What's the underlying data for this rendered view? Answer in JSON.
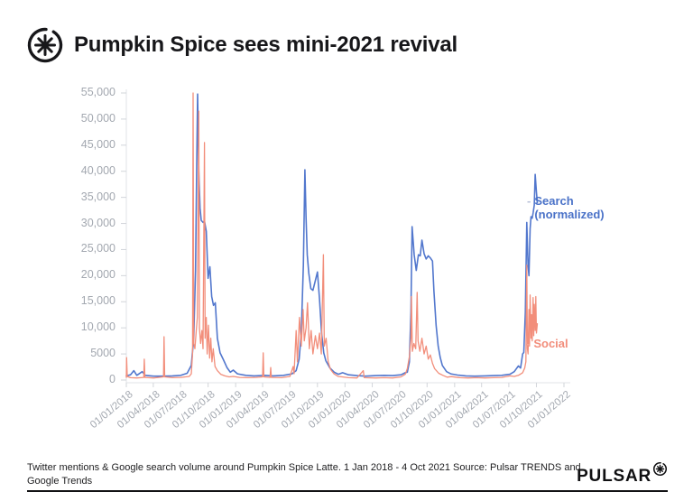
{
  "header": {
    "title": "Pumpkin Spice sees mini-2021 revival",
    "logo_icon": "pulsar-asterisk-icon"
  },
  "legend": {
    "dash": "-",
    "search_line1": "Search",
    "search_line2": "(normalized)",
    "social": "Social"
  },
  "footer": {
    "caption": "Twitter mentions & Google search volume around Pumpkin Spice Latte. 1 Jan 2018 - 4 Oct 2021 Source: Pulsar TRENDS and Google Trends",
    "brand": "PULSAR"
  },
  "colors": {
    "search": "#5277cd",
    "social": "#f28e7b",
    "axis_text": "#a3a8b0",
    "axis_line": "#e2e3e7",
    "tick_mark": "#d2d5da",
    "title_text": "#17171a"
  },
  "chart_data": {
    "type": "line",
    "title": "Pumpkin Spice sees mini-2021 revival",
    "xlabel": "",
    "ylabel": "",
    "grid": false,
    "legend_position": "right-of-line-ends",
    "x_axis": {
      "domain": [
        "2018-01-01",
        "2022-01-01"
      ],
      "tick_dates": [
        "2018-01-01",
        "2018-04-01",
        "2018-07-01",
        "2018-10-01",
        "2019-01-01",
        "2019-04-01",
        "2019-07-01",
        "2019-10-01",
        "2020-01-01",
        "2020-04-01",
        "2020-07-01",
        "2020-10-01",
        "2021-01-01",
        "2021-04-01",
        "2021-07-01",
        "2021-10-01",
        "2022-01-01"
      ],
      "tick_labels": [
        "01/01/2018",
        "01/04/2018",
        "01/07/2018",
        "01/10/2018",
        "01/01/2019",
        "01/04/2019",
        "01/07/2019",
        "01/10/2019",
        "01/01/2020",
        "01/04/2020",
        "01/07/2020",
        "01/10/2020",
        "01/01/2021",
        "01/04/2021",
        "01/07/2021",
        "01/10/2021",
        "01/01/2022"
      ]
    },
    "y_axis": {
      "min": 0,
      "max": 55000,
      "values": [
        0,
        5000,
        10000,
        15000,
        20000,
        25000,
        30000,
        35000,
        40000,
        45000,
        50000,
        55000
      ],
      "labels": [
        "0",
        "5000",
        "10,000",
        "15,000",
        "20,000",
        "25,000",
        "30,000",
        "35,000",
        "40,000",
        "45,000",
        "50,000",
        "55,000"
      ]
    },
    "series": [
      {
        "key": "search",
        "name": "Search (normalized)",
        "color": "#5277cd",
        "width": 1.6,
        "points": [
          [
            "2018-01-01",
            800
          ],
          [
            "2018-01-15",
            1000
          ],
          [
            "2018-01-26",
            1800
          ],
          [
            "2018-02-05",
            900
          ],
          [
            "2018-02-23",
            1600
          ],
          [
            "2018-03-05",
            900
          ],
          [
            "2018-04-02",
            750
          ],
          [
            "2018-05-07",
            750
          ],
          [
            "2018-06-04",
            800
          ],
          [
            "2018-07-02",
            900
          ],
          [
            "2018-07-23",
            1300
          ],
          [
            "2018-08-06",
            2800
          ],
          [
            "2018-08-14",
            8000
          ],
          [
            "2018-08-20",
            21000
          ],
          [
            "2018-08-24",
            41000
          ],
          [
            "2018-08-27",
            54800
          ],
          [
            "2018-08-31",
            40000
          ],
          [
            "2018-09-04",
            33000
          ],
          [
            "2018-09-08",
            30600
          ],
          [
            "2018-09-14",
            30200
          ],
          [
            "2018-09-19",
            30500
          ],
          [
            "2018-09-25",
            28500
          ],
          [
            "2018-10-01",
            19500
          ],
          [
            "2018-10-07",
            21700
          ],
          [
            "2018-10-13",
            16000
          ],
          [
            "2018-10-19",
            14300
          ],
          [
            "2018-10-25",
            14800
          ],
          [
            "2018-11-01",
            8000
          ],
          [
            "2018-11-10",
            5200
          ],
          [
            "2018-11-21",
            3900
          ],
          [
            "2018-12-03",
            2400
          ],
          [
            "2018-12-14",
            1500
          ],
          [
            "2018-12-24",
            1900
          ],
          [
            "2019-01-07",
            1200
          ],
          [
            "2019-02-04",
            900
          ],
          [
            "2019-03-04",
            800
          ],
          [
            "2019-04-08",
            900
          ],
          [
            "2019-05-06",
            800
          ],
          [
            "2019-06-10",
            900
          ],
          [
            "2019-07-08",
            1200
          ],
          [
            "2019-07-22",
            1800
          ],
          [
            "2019-08-01",
            4000
          ],
          [
            "2019-08-08",
            9000
          ],
          [
            "2019-08-15",
            22000
          ],
          [
            "2019-08-20",
            40300
          ],
          [
            "2019-08-24",
            31000
          ],
          [
            "2019-08-28",
            24000
          ],
          [
            "2019-09-02",
            20500
          ],
          [
            "2019-09-09",
            17500
          ],
          [
            "2019-09-16",
            17200
          ],
          [
            "2019-09-23",
            18800
          ],
          [
            "2019-10-01",
            20700
          ],
          [
            "2019-10-08",
            15500
          ],
          [
            "2019-10-15",
            9000
          ],
          [
            "2019-10-22",
            5200
          ],
          [
            "2019-10-29",
            3700
          ],
          [
            "2019-11-12",
            2300
          ],
          [
            "2019-11-26",
            1500
          ],
          [
            "2019-12-10",
            1100
          ],
          [
            "2019-12-24",
            1400
          ],
          [
            "2020-01-13",
            1000
          ],
          [
            "2020-02-10",
            850
          ],
          [
            "2020-03-09",
            750
          ],
          [
            "2020-04-13",
            850
          ],
          [
            "2020-05-11",
            900
          ],
          [
            "2020-06-08",
            850
          ],
          [
            "2020-07-06",
            1000
          ],
          [
            "2020-07-20",
            1400
          ],
          [
            "2020-07-27",
            1500
          ],
          [
            "2020-08-03",
            3500
          ],
          [
            "2020-08-08",
            13000
          ],
          [
            "2020-08-12",
            29400
          ],
          [
            "2020-08-19",
            24000
          ],
          [
            "2020-08-26",
            21000
          ],
          [
            "2020-09-02",
            24000
          ],
          [
            "2020-09-08",
            23800
          ],
          [
            "2020-09-14",
            26800
          ],
          [
            "2020-09-21",
            24200
          ],
          [
            "2020-09-28",
            23200
          ],
          [
            "2020-10-05",
            23800
          ],
          [
            "2020-10-12",
            23400
          ],
          [
            "2020-10-19",
            22800
          ],
          [
            "2020-10-24",
            17000
          ],
          [
            "2020-10-31",
            10500
          ],
          [
            "2020-11-07",
            6500
          ],
          [
            "2020-11-14",
            4300
          ],
          [
            "2020-11-21",
            2800
          ],
          [
            "2020-12-05",
            1600
          ],
          [
            "2020-12-19",
            1200
          ],
          [
            "2021-01-11",
            950
          ],
          [
            "2021-02-08",
            800
          ],
          [
            "2021-03-08",
            750
          ],
          [
            "2021-04-12",
            800
          ],
          [
            "2021-05-10",
            850
          ],
          [
            "2021-06-07",
            900
          ],
          [
            "2021-07-05",
            1100
          ],
          [
            "2021-07-19",
            1600
          ],
          [
            "2021-08-02",
            2700
          ],
          [
            "2021-08-09",
            2300
          ],
          [
            "2021-08-16",
            5000
          ],
          [
            "2021-08-20",
            5300
          ],
          [
            "2021-08-25",
            13000
          ],
          [
            "2021-08-30",
            30200
          ],
          [
            "2021-09-03",
            22000
          ],
          [
            "2021-09-06",
            20000
          ],
          [
            "2021-09-10",
            29000
          ],
          [
            "2021-09-13",
            31300
          ],
          [
            "2021-09-17",
            31000
          ],
          [
            "2021-09-20",
            32000
          ],
          [
            "2021-09-24",
            33500
          ],
          [
            "2021-09-27",
            39400
          ],
          [
            "2021-10-01",
            36000
          ],
          [
            "2021-10-04",
            34000
          ]
        ]
      },
      {
        "key": "social",
        "name": "Social",
        "color": "#f28e7b",
        "width": 1.3,
        "points": [
          [
            "2018-01-01",
            500
          ],
          [
            "2018-01-02",
            4300
          ],
          [
            "2018-01-04",
            700
          ],
          [
            "2018-01-15",
            450
          ],
          [
            "2018-02-05",
            400
          ],
          [
            "2018-02-28",
            500
          ],
          [
            "2018-03-02",
            4000
          ],
          [
            "2018-03-04",
            500
          ],
          [
            "2018-04-02",
            400
          ],
          [
            "2018-05-05",
            600
          ],
          [
            "2018-05-07",
            8300
          ],
          [
            "2018-05-09",
            600
          ],
          [
            "2018-06-04",
            450
          ],
          [
            "2018-07-02",
            500
          ],
          [
            "2018-07-30",
            700
          ],
          [
            "2018-08-06",
            1200
          ],
          [
            "2018-08-10",
            5000
          ],
          [
            "2018-08-12",
            55000
          ],
          [
            "2018-08-14",
            7000
          ],
          [
            "2018-08-18",
            6000
          ],
          [
            "2018-08-22",
            9000
          ],
          [
            "2018-08-26",
            12000
          ],
          [
            "2018-08-31",
            51500
          ],
          [
            "2018-09-02",
            10000
          ],
          [
            "2018-09-06",
            7000
          ],
          [
            "2018-09-10",
            9500
          ],
          [
            "2018-09-14",
            6000
          ],
          [
            "2018-09-19",
            45500
          ],
          [
            "2018-09-21",
            8000
          ],
          [
            "2018-09-25",
            12000
          ],
          [
            "2018-09-28",
            5000
          ],
          [
            "2018-10-02",
            10500
          ],
          [
            "2018-10-06",
            4200
          ],
          [
            "2018-10-10",
            8000
          ],
          [
            "2018-10-14",
            3500
          ],
          [
            "2018-10-18",
            6000
          ],
          [
            "2018-10-24",
            2600
          ],
          [
            "2018-11-01",
            1800
          ],
          [
            "2018-11-12",
            1100
          ],
          [
            "2018-11-26",
            800
          ],
          [
            "2018-12-10",
            600
          ],
          [
            "2018-12-24",
            700
          ],
          [
            "2019-01-14",
            500
          ],
          [
            "2019-02-11",
            450
          ],
          [
            "2019-03-11",
            500
          ],
          [
            "2019-04-01",
            600
          ],
          [
            "2019-04-03",
            5200
          ],
          [
            "2019-04-05",
            600
          ],
          [
            "2019-04-26",
            500
          ],
          [
            "2019-04-28",
            2400
          ],
          [
            "2019-04-30",
            500
          ],
          [
            "2019-06-03",
            450
          ],
          [
            "2019-07-01",
            700
          ],
          [
            "2019-07-12",
            2600
          ],
          [
            "2019-07-15",
            1200
          ],
          [
            "2019-07-22",
            9500
          ],
          [
            "2019-07-26",
            3500
          ],
          [
            "2019-08-02",
            12000
          ],
          [
            "2019-08-08",
            6500
          ],
          [
            "2019-08-14",
            13500
          ],
          [
            "2019-08-18",
            7500
          ],
          [
            "2019-08-24",
            10000
          ],
          [
            "2019-08-29",
            14800
          ],
          [
            "2019-09-04",
            6000
          ],
          [
            "2019-09-10",
            9500
          ],
          [
            "2019-09-16",
            5000
          ],
          [
            "2019-09-24",
            8500
          ],
          [
            "2019-10-01",
            6000
          ],
          [
            "2019-10-08",
            9000
          ],
          [
            "2019-10-14",
            5000
          ],
          [
            "2019-10-21",
            24000
          ],
          [
            "2019-10-24",
            6500
          ],
          [
            "2019-10-30",
            8000
          ],
          [
            "2019-11-06",
            3500
          ],
          [
            "2019-11-14",
            2000
          ],
          [
            "2019-11-25",
            1200
          ],
          [
            "2019-12-09",
            700
          ],
          [
            "2019-12-23",
            600
          ],
          [
            "2020-01-13",
            450
          ],
          [
            "2020-02-10",
            400
          ],
          [
            "2020-03-02",
            1800
          ],
          [
            "2020-03-05",
            450
          ],
          [
            "2020-04-13",
            400
          ],
          [
            "2020-05-11",
            450
          ],
          [
            "2020-06-08",
            400
          ],
          [
            "2020-07-06",
            600
          ],
          [
            "2020-07-20",
            1100
          ],
          [
            "2020-07-27",
            2200
          ],
          [
            "2020-08-03",
            4500
          ],
          [
            "2020-08-08",
            8000
          ],
          [
            "2020-08-10",
            16000
          ],
          [
            "2020-08-13",
            5500
          ],
          [
            "2020-08-18",
            7000
          ],
          [
            "2020-08-24",
            6000
          ],
          [
            "2020-08-29",
            16800
          ],
          [
            "2020-09-01",
            7500
          ],
          [
            "2020-09-07",
            5500
          ],
          [
            "2020-09-14",
            8000
          ],
          [
            "2020-09-21",
            5000
          ],
          [
            "2020-09-28",
            6500
          ],
          [
            "2020-10-05",
            4000
          ],
          [
            "2020-10-12",
            4800
          ],
          [
            "2020-10-19",
            3200
          ],
          [
            "2020-10-26",
            2200
          ],
          [
            "2020-11-09",
            1300
          ],
          [
            "2020-11-23",
            900
          ],
          [
            "2020-12-07",
            550
          ],
          [
            "2020-12-21",
            650
          ],
          [
            "2021-01-18",
            450
          ],
          [
            "2021-02-15",
            400
          ],
          [
            "2021-03-15",
            450
          ],
          [
            "2021-04-12",
            400
          ],
          [
            "2021-05-10",
            450
          ],
          [
            "2021-06-07",
            500
          ],
          [
            "2021-07-05",
            800
          ],
          [
            "2021-07-19",
            700
          ],
          [
            "2021-08-02",
            900
          ],
          [
            "2021-08-16",
            1400
          ],
          [
            "2021-08-23",
            2300
          ],
          [
            "2021-08-27",
            3500
          ],
          [
            "2021-08-30",
            22000
          ],
          [
            "2021-09-01",
            6000
          ],
          [
            "2021-09-03",
            5000
          ],
          [
            "2021-09-06",
            13500
          ],
          [
            "2021-09-08",
            6500
          ],
          [
            "2021-09-10",
            16300
          ],
          [
            "2021-09-13",
            8000
          ],
          [
            "2021-09-15",
            12500
          ],
          [
            "2021-09-17",
            7500
          ],
          [
            "2021-09-20",
            15800
          ],
          [
            "2021-09-22",
            8500
          ],
          [
            "2021-09-24",
            14500
          ],
          [
            "2021-09-27",
            9500
          ],
          [
            "2021-09-29",
            16000
          ],
          [
            "2021-10-01",
            9000
          ],
          [
            "2021-10-04",
            10800
          ]
        ]
      }
    ]
  }
}
